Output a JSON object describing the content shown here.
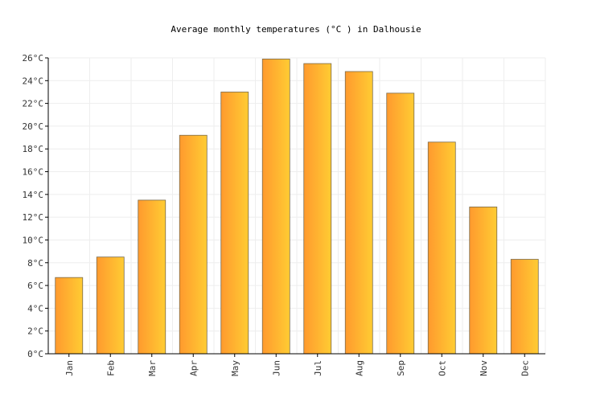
{
  "chart_data": {
    "type": "bar",
    "title": "Average monthly temperatures (°C ) in Dalhousie",
    "xlabel": "",
    "ylabel": "",
    "unit": "°C",
    "categories": [
      "Jan",
      "Feb",
      "Mar",
      "Apr",
      "May",
      "Jun",
      "Jul",
      "Aug",
      "Sep",
      "Oct",
      "Nov",
      "Dec"
    ],
    "values": [
      6.7,
      8.5,
      13.5,
      19.2,
      23.0,
      25.9,
      25.5,
      24.8,
      22.9,
      18.6,
      12.9,
      8.3
    ],
    "ylim": [
      0,
      26
    ],
    "yticks": [
      "0°C",
      "2°C",
      "4°C",
      "6°C",
      "8°C",
      "10°C",
      "12°C",
      "14°C",
      "16°C",
      "18°C",
      "20°C",
      "22°C",
      "24°C",
      "26°C"
    ],
    "grid": true,
    "legend": "none",
    "colors": {
      "bar_start": "#ff9a2e",
      "bar_end": "#ffcc33",
      "bar_stroke": "#7a6a4a",
      "grid": "#eeeeee",
      "axis": "#000000"
    }
  }
}
